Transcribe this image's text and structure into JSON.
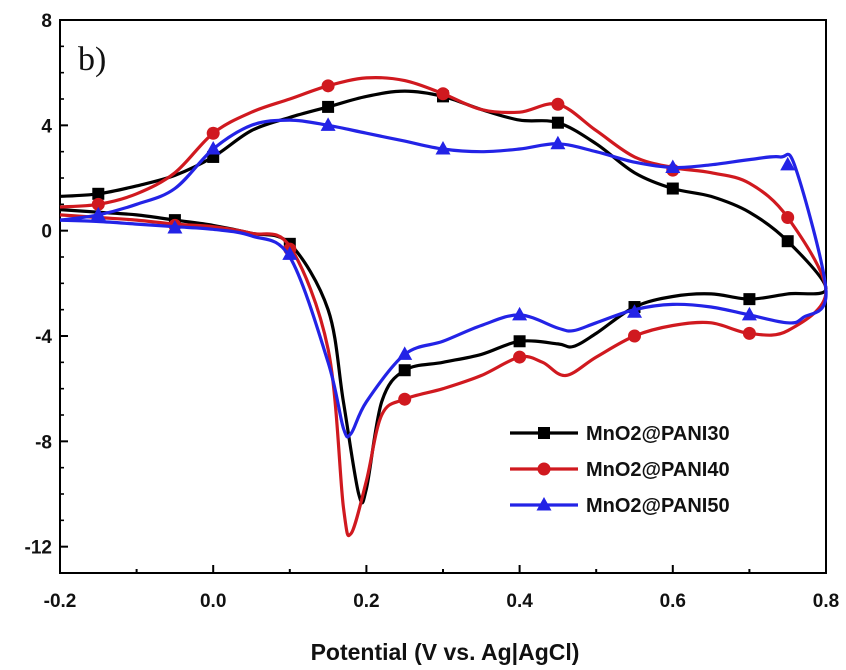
{
  "chart_data": {
    "type": "line",
    "panel_label": "b)",
    "xlabel": "Potential (V vs. Ag|AgCl)",
    "ylabel": "",
    "xlim": [
      -0.2,
      0.8
    ],
    "ylim": [
      -13,
      8
    ],
    "x_ticks": [
      -0.2,
      0.0,
      0.2,
      0.4,
      0.6,
      0.8
    ],
    "x_tick_labels": [
      "-0.2",
      "0.0",
      "0.2",
      "0.4",
      "0.6",
      "0.8"
    ],
    "y_ticks": [
      8,
      4,
      0,
      -4,
      -8,
      -12
    ],
    "y_tick_labels": [
      "8",
      "4",
      "0",
      "-4",
      "-8",
      "-12"
    ],
    "grid": false,
    "legend_position": "bottom-right",
    "series": [
      {
        "name": "MnO2@PANI30",
        "color": "#000000",
        "marker": "square",
        "points": [
          [
            -0.2,
            1.3
          ],
          [
            -0.15,
            1.4
          ],
          [
            -0.1,
            1.7
          ],
          [
            -0.05,
            2.1
          ],
          [
            0.0,
            2.8
          ],
          [
            0.05,
            3.8
          ],
          [
            0.1,
            4.3
          ],
          [
            0.15,
            4.7
          ],
          [
            0.2,
            5.1
          ],
          [
            0.25,
            5.3
          ],
          [
            0.3,
            5.1
          ],
          [
            0.35,
            4.6
          ],
          [
            0.4,
            4.2
          ],
          [
            0.45,
            4.1
          ],
          [
            0.5,
            3.3
          ],
          [
            0.55,
            2.2
          ],
          [
            0.6,
            1.6
          ],
          [
            0.65,
            1.3
          ],
          [
            0.7,
            0.7
          ],
          [
            0.75,
            -0.4
          ],
          [
            0.8,
            -2.2
          ],
          [
            0.75,
            -2.4
          ],
          [
            0.7,
            -2.6
          ],
          [
            0.65,
            -2.4
          ],
          [
            0.6,
            -2.5
          ],
          [
            0.55,
            -2.9
          ],
          [
            0.5,
            -3.9
          ],
          [
            0.47,
            -4.4
          ],
          [
            0.45,
            -4.3
          ],
          [
            0.4,
            -4.2
          ],
          [
            0.35,
            -4.7
          ],
          [
            0.3,
            -5.0
          ],
          [
            0.25,
            -5.3
          ],
          [
            0.22,
            -6.5
          ],
          [
            0.2,
            -9.8
          ],
          [
            0.19,
            -10.0
          ],
          [
            0.17,
            -6.5
          ],
          [
            0.15,
            -3.0
          ],
          [
            0.1,
            -0.5
          ],
          [
            0.05,
            -0.1
          ],
          [
            0.0,
            0.2
          ],
          [
            -0.05,
            0.4
          ],
          [
            -0.1,
            0.6
          ],
          [
            -0.15,
            0.7
          ],
          [
            -0.2,
            0.8
          ]
        ],
        "marker_points": [
          [
            -0.15,
            1.4
          ],
          [
            0.0,
            2.8
          ],
          [
            0.15,
            4.7
          ],
          [
            0.3,
            5.1
          ],
          [
            0.45,
            4.1
          ],
          [
            0.6,
            1.6
          ],
          [
            0.75,
            -0.4
          ],
          [
            0.7,
            -2.6
          ],
          [
            0.55,
            -2.9
          ],
          [
            0.4,
            -4.2
          ],
          [
            0.25,
            -5.3
          ],
          [
            0.1,
            -0.5
          ],
          [
            -0.05,
            0.4
          ]
        ]
      },
      {
        "name": "MnO2@PANI40",
        "color": "#d0191f",
        "marker": "circle",
        "points": [
          [
            -0.2,
            0.9
          ],
          [
            -0.15,
            1.0
          ],
          [
            -0.1,
            1.4
          ],
          [
            -0.05,
            2.2
          ],
          [
            0.0,
            3.7
          ],
          [
            0.05,
            4.5
          ],
          [
            0.1,
            5.0
          ],
          [
            0.15,
            5.5
          ],
          [
            0.2,
            5.8
          ],
          [
            0.25,
            5.7
          ],
          [
            0.3,
            5.2
          ],
          [
            0.35,
            4.6
          ],
          [
            0.4,
            4.5
          ],
          [
            0.45,
            4.8
          ],
          [
            0.5,
            3.8
          ],
          [
            0.55,
            2.8
          ],
          [
            0.6,
            2.4
          ],
          [
            0.65,
            2.2
          ],
          [
            0.7,
            1.8
          ],
          [
            0.75,
            0.5
          ],
          [
            0.8,
            -2.3
          ],
          [
            0.75,
            -3.8
          ],
          [
            0.7,
            -3.9
          ],
          [
            0.65,
            -3.5
          ],
          [
            0.6,
            -3.6
          ],
          [
            0.55,
            -4.0
          ],
          [
            0.5,
            -4.8
          ],
          [
            0.46,
            -5.5
          ],
          [
            0.43,
            -5.0
          ],
          [
            0.4,
            -4.8
          ],
          [
            0.35,
            -5.5
          ],
          [
            0.3,
            -6.0
          ],
          [
            0.25,
            -6.4
          ],
          [
            0.22,
            -7.0
          ],
          [
            0.2,
            -9.5
          ],
          [
            0.18,
            -11.5
          ],
          [
            0.17,
            -10.5
          ],
          [
            0.15,
            -4.5
          ],
          [
            0.1,
            -0.6
          ],
          [
            0.05,
            -0.1
          ],
          [
            0.0,
            0.15
          ],
          [
            -0.05,
            0.25
          ],
          [
            -0.1,
            0.4
          ],
          [
            -0.15,
            0.5
          ],
          [
            -0.2,
            0.6
          ]
        ],
        "marker_points": [
          [
            -0.15,
            1.0
          ],
          [
            0.0,
            3.7
          ],
          [
            0.15,
            5.5
          ],
          [
            0.3,
            5.2
          ],
          [
            0.45,
            4.8
          ],
          [
            0.6,
            2.3
          ],
          [
            0.75,
            0.5
          ],
          [
            0.7,
            -3.9
          ],
          [
            0.55,
            -4.0
          ],
          [
            0.4,
            -4.8
          ],
          [
            0.25,
            -6.4
          ],
          [
            0.1,
            -0.7
          ],
          [
            -0.05,
            0.2
          ]
        ]
      },
      {
        "name": "MnO2@PANI50",
        "color": "#2323e6",
        "marker": "triangle",
        "points": [
          [
            -0.2,
            0.4
          ],
          [
            -0.15,
            0.6
          ],
          [
            -0.1,
            1.0
          ],
          [
            -0.05,
            1.6
          ],
          [
            0.0,
            3.1
          ],
          [
            0.05,
            4.0
          ],
          [
            0.1,
            4.2
          ],
          [
            0.15,
            4.0
          ],
          [
            0.2,
            3.7
          ],
          [
            0.25,
            3.4
          ],
          [
            0.3,
            3.1
          ],
          [
            0.35,
            3.0
          ],
          [
            0.4,
            3.1
          ],
          [
            0.45,
            3.3
          ],
          [
            0.5,
            3.0
          ],
          [
            0.55,
            2.6
          ],
          [
            0.6,
            2.4
          ],
          [
            0.65,
            2.5
          ],
          [
            0.7,
            2.7
          ],
          [
            0.74,
            2.8
          ],
          [
            0.76,
            2.4
          ],
          [
            0.8,
            -2.3
          ],
          [
            0.77,
            -3.3
          ],
          [
            0.75,
            -3.5
          ],
          [
            0.7,
            -3.2
          ],
          [
            0.65,
            -2.9
          ],
          [
            0.6,
            -2.8
          ],
          [
            0.55,
            -3.0
          ],
          [
            0.5,
            -3.5
          ],
          [
            0.47,
            -3.8
          ],
          [
            0.45,
            -3.7
          ],
          [
            0.4,
            -3.2
          ],
          [
            0.35,
            -3.6
          ],
          [
            0.3,
            -4.2
          ],
          [
            0.25,
            -4.7
          ],
          [
            0.2,
            -6.5
          ],
          [
            0.18,
            -7.7
          ],
          [
            0.17,
            -7.5
          ],
          [
            0.15,
            -5.0
          ],
          [
            0.1,
            -1.0
          ],
          [
            0.05,
            -0.2
          ],
          [
            0.0,
            0.05
          ],
          [
            -0.05,
            0.15
          ],
          [
            -0.1,
            0.25
          ],
          [
            -0.15,
            0.35
          ],
          [
            -0.2,
            0.4
          ]
        ],
        "marker_points": [
          [
            -0.15,
            0.6
          ],
          [
            0.0,
            3.1
          ],
          [
            0.15,
            4.0
          ],
          [
            0.3,
            3.1
          ],
          [
            0.45,
            3.3
          ],
          [
            0.6,
            2.4
          ],
          [
            0.75,
            2.5
          ],
          [
            0.7,
            -3.2
          ],
          [
            0.55,
            -3.1
          ],
          [
            0.4,
            -3.2
          ],
          [
            0.25,
            -4.7
          ],
          [
            0.1,
            -0.9
          ],
          [
            -0.05,
            0.1
          ]
        ]
      }
    ]
  }
}
